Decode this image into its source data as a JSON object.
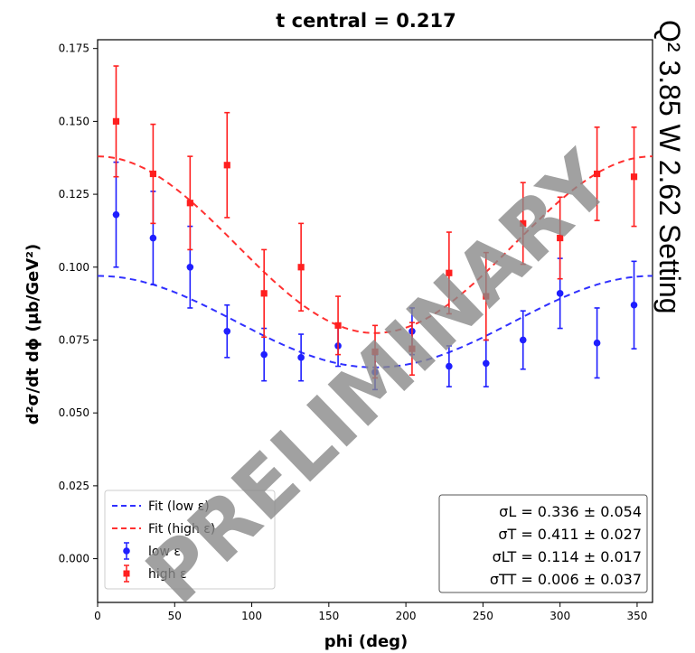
{
  "chart_data": {
    "type": "scatter",
    "title": "t central = 0.217",
    "xlabel": "phi (deg)",
    "ylabel": "d²σ/dt dϕ (μb/GeV²)",
    "xlim": [
      0,
      360
    ],
    "ylim": [
      -0.015,
      0.178
    ],
    "xticks": [
      0,
      50,
      100,
      150,
      200,
      250,
      300,
      350
    ],
    "xtick_labels": [
      "0",
      "50",
      "100",
      "150",
      "200",
      "250",
      "300",
      "350"
    ],
    "yticks": [
      0.0,
      0.025,
      0.05,
      0.075,
      0.1,
      0.125,
      0.15,
      0.175
    ],
    "ytick_labels": [
      "0.000",
      "0.025",
      "0.050",
      "0.075",
      "0.100",
      "0.125",
      "0.150",
      "0.175"
    ],
    "grid": false,
    "legend_position": "bottom-left",
    "side_label": "Q² 3.85 W 2.62 Setting",
    "watermark": "PRELIMINARY",
    "series": [
      {
        "name": "low ε",
        "color": "#1f1fff",
        "marker": "circle",
        "x": [
          12,
          36,
          60,
          84,
          108,
          132,
          156,
          180,
          204,
          228,
          252,
          276,
          300,
          324,
          348
        ],
        "y": [
          0.118,
          0.11,
          0.1,
          0.078,
          0.07,
          0.069,
          0.073,
          0.064,
          0.078,
          0.066,
          0.067,
          0.075,
          0.091,
          0.074,
          0.087
        ],
        "err": [
          0.018,
          0.016,
          0.014,
          0.009,
          0.009,
          0.008,
          0.007,
          0.006,
          0.008,
          0.007,
          0.008,
          0.01,
          0.012,
          0.012,
          0.015
        ]
      },
      {
        "name": "high ε",
        "color": "#ff1f1f",
        "marker": "square",
        "x": [
          12,
          36,
          60,
          84,
          108,
          132,
          156,
          180,
          204,
          228,
          252,
          276,
          300,
          324,
          348
        ],
        "y": [
          0.15,
          0.132,
          0.122,
          0.135,
          0.091,
          0.1,
          0.08,
          0.071,
          0.072,
          0.098,
          0.09,
          0.115,
          0.11,
          0.132,
          0.131
        ],
        "err": [
          0.019,
          0.017,
          0.016,
          0.018,
          0.015,
          0.015,
          0.01,
          0.009,
          0.009,
          0.014,
          0.015,
          0.014,
          0.014,
          0.016,
          0.017
        ]
      }
    ],
    "fits": [
      {
        "name": "Fit (low ε)",
        "color": "#3030ff",
        "a": 0.0813,
        "b": 0.0157
      },
      {
        "name": "Fit (high ε)",
        "color": "#ff3030",
        "a": 0.1077,
        "b": 0.0303
      }
    ],
    "results": [
      "σL = 0.336 ± 0.054",
      "σT = 0.411 ± 0.027",
      "σLT = 0.114 ± 0.017",
      "σTT = 0.006 ± 0.037"
    ]
  }
}
